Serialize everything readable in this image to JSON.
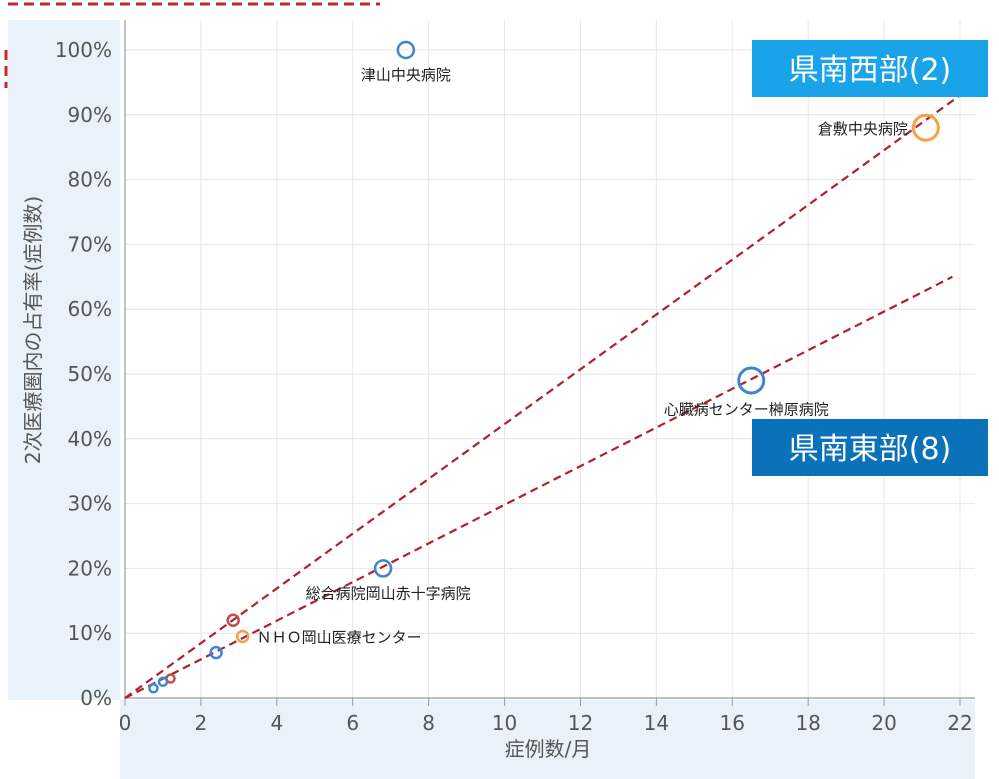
{
  "chart_data": {
    "type": "scatter",
    "xlabel": "症例数/月",
    "ylabel": "2次医療圏内の占有率(症例数)",
    "xlim": [
      0,
      22
    ],
    "ylim": [
      0,
      100
    ],
    "x_ticks": [
      "0",
      "2",
      "4",
      "6",
      "8",
      "10",
      "12",
      "14",
      "16",
      "18",
      "20",
      "22"
    ],
    "y_ticks": [
      "0%",
      "10%",
      "20%",
      "30%",
      "40%",
      "50%",
      "60%",
      "70%",
      "80%",
      "90%",
      "100%"
    ],
    "grid": true,
    "colors": {
      "blue": "#3f85d0",
      "orange": "#f5a14a",
      "red": "#c0504d",
      "trend": "#b0202a",
      "region_light": "#1aa3e8",
      "region_dark": "#0b72b9",
      "panel": "#e9f1fb"
    },
    "points": [
      {
        "x": 7.4,
        "y": 100,
        "size": "medium",
        "color": "blue",
        "label": "津山中央病院"
      },
      {
        "x": 21.1,
        "y": 88,
        "size": "large",
        "color": "orange",
        "label": "倉敷中央病院"
      },
      {
        "x": 16.5,
        "y": 49,
        "size": "large",
        "color": "blue",
        "label": "心臓病センター榊原病院"
      },
      {
        "x": 6.8,
        "y": 20,
        "size": "medium",
        "color": "blue",
        "label": "総合病院岡山赤十字病院"
      },
      {
        "x": 3.1,
        "y": 9.5,
        "size": "small",
        "color": "orange",
        "label": "ＮＨＯ岡山医療センター"
      },
      {
        "x": 2.85,
        "y": 12,
        "size": "small",
        "color": "red",
        "label": ""
      },
      {
        "x": 2.4,
        "y": 7,
        "size": "small",
        "color": "blue",
        "label": ""
      },
      {
        "x": 1.2,
        "y": 3,
        "size": "xsmall",
        "color": "red",
        "label": ""
      },
      {
        "x": 1.0,
        "y": 2.5,
        "size": "xsmall",
        "color": "blue",
        "label": ""
      },
      {
        "x": 0.75,
        "y": 1.5,
        "size": "xsmall",
        "color": "blue",
        "label": ""
      }
    ],
    "trend_lines": [
      {
        "label": "県南西部(2)",
        "from": [
          0,
          0
        ],
        "to": [
          22,
          93
        ]
      },
      {
        "label": "県南東部(8)",
        "from": [
          0,
          0
        ],
        "to": [
          21.8,
          65
        ]
      }
    ]
  }
}
